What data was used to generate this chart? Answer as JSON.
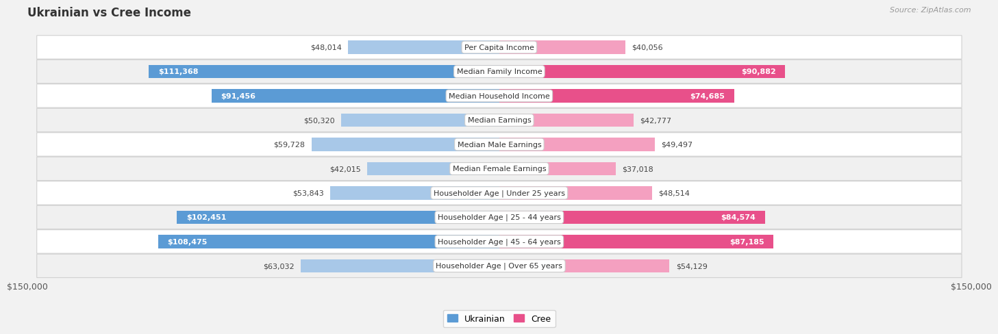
{
  "title": "Ukrainian vs Cree Income",
  "source": "Source: ZipAtlas.com",
  "categories": [
    "Per Capita Income",
    "Median Family Income",
    "Median Household Income",
    "Median Earnings",
    "Median Male Earnings",
    "Median Female Earnings",
    "Householder Age | Under 25 years",
    "Householder Age | 25 - 44 years",
    "Householder Age | 45 - 64 years",
    "Householder Age | Over 65 years"
  ],
  "ukrainian_values": [
    48014,
    111368,
    91456,
    50320,
    59728,
    42015,
    53843,
    102451,
    108475,
    63032
  ],
  "cree_values": [
    40056,
    90882,
    74685,
    42777,
    49497,
    37018,
    48514,
    84574,
    87185,
    54129
  ],
  "ukrainian_labels": [
    "$48,014",
    "$111,368",
    "$91,456",
    "$50,320",
    "$59,728",
    "$42,015",
    "$53,843",
    "$102,451",
    "$108,475",
    "$63,032"
  ],
  "cree_labels": [
    "$40,056",
    "$90,882",
    "$74,685",
    "$42,777",
    "$49,497",
    "$37,018",
    "$48,514",
    "$84,574",
    "$87,185",
    "$54,129"
  ],
  "ukrainian_light_color": "#a8c8e8",
  "ukrainian_dark_color": "#5b9bd5",
  "cree_light_color": "#f4a0c0",
  "cree_dark_color": "#e8508a",
  "max_value": 150000,
  "background_color": "#f2f2f2",
  "row_even_color": "#ffffff",
  "row_odd_color": "#f0f0f0",
  "label_inside_threshold": 65000,
  "title_fontsize": 12,
  "label_fontsize": 8,
  "category_fontsize": 8,
  "axis_label": "$150,000",
  "legend_ukrainian": "Ukrainian",
  "legend_cree": "Cree"
}
